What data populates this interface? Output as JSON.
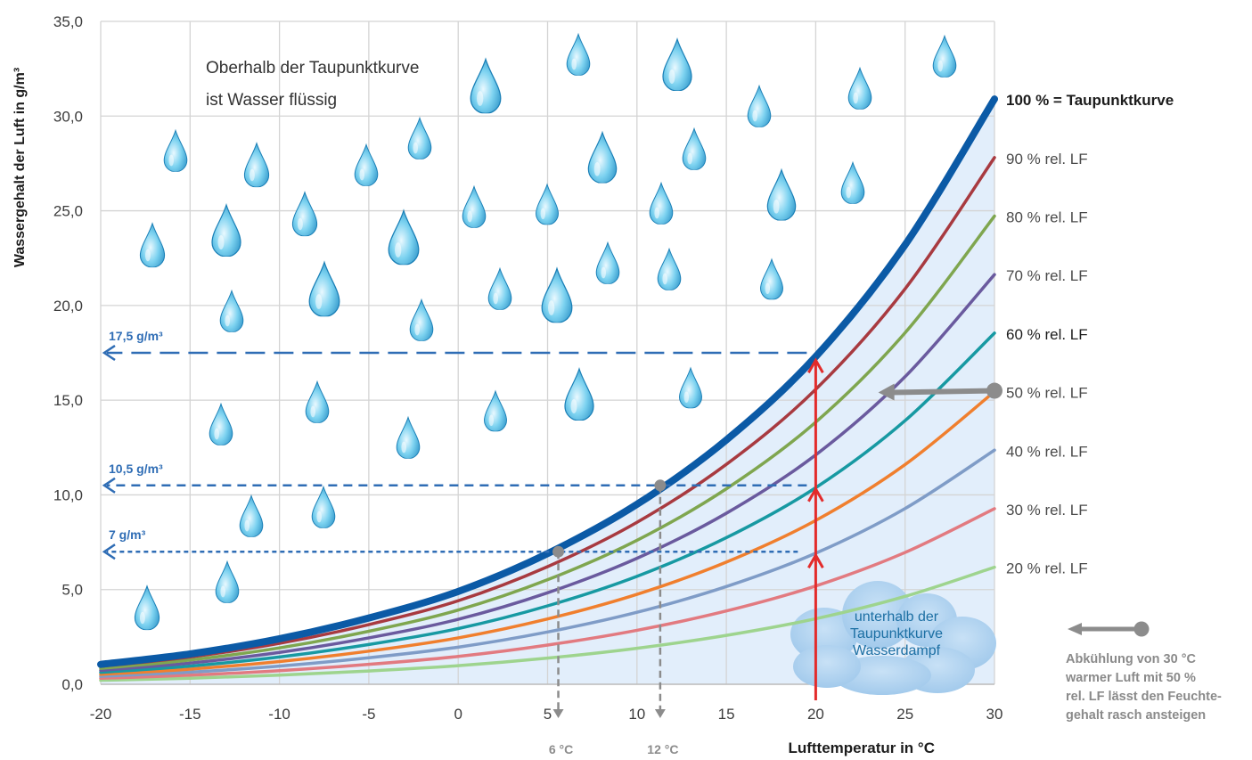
{
  "chart_data": {
    "type": "line",
    "ylabel": "Wassergehalt  der Luft in g/m³",
    "xlabel": "Lufttemperatur in °C",
    "xlim": [
      -20,
      30
    ],
    "ylim": [
      0,
      35
    ],
    "x_ticks": [
      -20,
      -15,
      -10,
      -5,
      0,
      5,
      10,
      15,
      20,
      25,
      30
    ],
    "y_ticks": [
      0,
      5,
      10,
      15,
      20,
      25,
      30,
      35
    ],
    "y_tick_labels": [
      "0,0",
      "5,0",
      "10,0",
      "15,0",
      "20,0",
      "25,0",
      "30,0",
      "35,0"
    ],
    "x": [
      -20,
      -15,
      -10,
      -5,
      0,
      5,
      10,
      15,
      20,
      25,
      30
    ],
    "dewpoint_values": [
      1.05,
      1.6,
      2.4,
      3.5,
      4.9,
      6.9,
      9.5,
      12.9,
      17.3,
      23.2,
      30.9
    ],
    "series": [
      {
        "name": "100 % = Taupunktkurve",
        "rh": 1.0,
        "color": "#0b5aa6"
      },
      {
        "name": "90 % rel.  LF",
        "rh": 0.9,
        "color": "#a83a40"
      },
      {
        "name": "80 % rel.  LF",
        "rh": 0.8,
        "color": "#7fa64f"
      },
      {
        "name": "70 % rel.  LF",
        "rh": 0.7,
        "color": "#6a5a9e"
      },
      {
        "name": "60 % rel.  LF",
        "rh": 0.6,
        "color": "#1799a2"
      },
      {
        "name": "50 % rel.  LF",
        "rh": 0.5,
        "color": "#f07f2e"
      },
      {
        "name": "40 % rel.  LF",
        "rh": 0.4,
        "color": "#7f9cc7"
      },
      {
        "name": "30 % rel.  LF",
        "rh": 0.3,
        "color": "#e27a80"
      },
      {
        "name": "20 % rel.  LF",
        "rh": 0.2,
        "color": "#9ed48e"
      }
    ],
    "reference_lines": [
      {
        "label": "17,5 g/m³",
        "value": 17.5,
        "from_x": 19.5
      },
      {
        "label": "10,5 g/m³",
        "value": 10.5,
        "from_x": 19.5
      },
      {
        "label": "7  g/m³",
        "value": 7.0,
        "from_x": 19.0
      }
    ],
    "dewpoint_markers": [
      {
        "label": "6 °C",
        "x": 5.6,
        "y": 7.0
      },
      {
        "label": "12 °C",
        "x": 11.3,
        "y": 10.5
      }
    ],
    "cooling_x": 20,
    "cooling_arrow": {
      "from": [
        30,
        15.5
      ],
      "to": [
        23.5,
        15.5
      ]
    },
    "annotations": {
      "above": [
        "Oberhalb der Taupunktkurve",
        "ist Wasser flüssig"
      ],
      "below": [
        "unterhalb der",
        "Taupunktkurve",
        "Wasserdampf"
      ]
    }
  },
  "legend_note": {
    "lines": [
      "Abkühlung von 30 °C",
      "warmer Luft mit 50 %",
      "rel. LF lässt den Feuchte-",
      "gehalt rasch ansteigen"
    ]
  },
  "colors": {
    "grid": "#d4d4d4",
    "reference": "#2f6db5",
    "cooling": "#e32b2b",
    "marker": "#8c8c8c",
    "drop": "#3bb3dc",
    "cloud": "#a5cbea",
    "fill": "#e2eefb"
  },
  "icons": [
    "water-drop-icon",
    "cloud-icon",
    "arrow-left-icon"
  ]
}
